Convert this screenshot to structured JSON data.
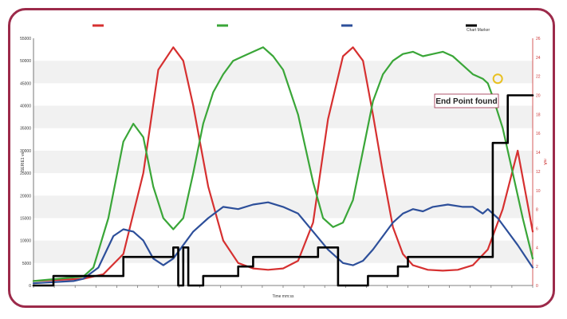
{
  "chart_data": {
    "type": "line",
    "xlabel": "Time mm:ss",
    "ylabel_left": "SERIE1 vs",
    "ylabel_right": "mA",
    "ylim_left": [
      0,
      55000
    ],
    "ylim_right": [
      0,
      26
    ],
    "xlim": [
      0,
      100
    ],
    "yticks_left": [
      0,
      5000,
      10000,
      15000,
      20000,
      25000,
      30000,
      35000,
      40000,
      45000,
      50000,
      55000
    ],
    "yticks_right": [
      0,
      2,
      4,
      6,
      8,
      10,
      12,
      14,
      16,
      18,
      20,
      22,
      24,
      26
    ],
    "grid": "horizontal bands",
    "legend_position": "top",
    "colors": {
      "red": "#d63030",
      "green": "#3aa638",
      "blue": "#2d4f9a",
      "black": "#000000",
      "frame": "#9c2a4a",
      "marker": "#e8c020"
    },
    "series": [
      {
        "name": "",
        "color": "#d63030",
        "axis": "left",
        "x": [
          0,
          10,
          14,
          18,
          22,
          25,
          28,
          30,
          32,
          35,
          38,
          41,
          44,
          47,
          50,
          53,
          56,
          59,
          62,
          64,
          66,
          68,
          70,
          72,
          74,
          76,
          79,
          82,
          85,
          88,
          91,
          94,
          97,
          100
        ],
        "y": [
          1000,
          1500,
          2500,
          7000,
          25000,
          48000,
          53000,
          50000,
          40000,
          22000,
          10000,
          5000,
          3800,
          3500,
          3800,
          5500,
          14000,
          37000,
          51000,
          53000,
          50000,
          38000,
          25000,
          13000,
          7000,
          4500,
          3500,
          3300,
          3500,
          4500,
          8000,
          17000,
          30000,
          12000
        ]
      },
      {
        "name": "",
        "color": "#3aa638",
        "axis": "left",
        "x": [
          0,
          10,
          12,
          15,
          18,
          20,
          22,
          24,
          26,
          28,
          30,
          32,
          34,
          36,
          38,
          40,
          42,
          44,
          46,
          48,
          50,
          53,
          56,
          58,
          60,
          62,
          64,
          66,
          68,
          70,
          72,
          74,
          76,
          78,
          80,
          82,
          84,
          86,
          88,
          90,
          91,
          92,
          94,
          96,
          98,
          100
        ],
        "y": [
          1000,
          2000,
          4000,
          15000,
          32000,
          36000,
          33000,
          22000,
          15000,
          12500,
          15000,
          25000,
          36000,
          43000,
          47000,
          50000,
          51000,
          52000,
          53000,
          51000,
          48000,
          38000,
          23000,
          15000,
          13000,
          14000,
          19000,
          30000,
          41000,
          47000,
          50000,
          51500,
          52000,
          51000,
          51500,
          52000,
          51000,
          49000,
          47000,
          46000,
          45000,
          42000,
          35000,
          25000,
          15000,
          6000
        ]
      },
      {
        "name": "",
        "color": "#2d4f9a",
        "axis": "left",
        "x": [
          0,
          8,
          10,
          13,
          16,
          18,
          20,
          22,
          24,
          26,
          28,
          30,
          32,
          35,
          38,
          41,
          44,
          47,
          50,
          53,
          56,
          59,
          62,
          64,
          66,
          68,
          70,
          72,
          74,
          76,
          78,
          80,
          83,
          86,
          88,
          90,
          91,
          93,
          95,
          97,
          100
        ],
        "y": [
          500,
          1000,
          1500,
          4000,
          11000,
          12500,
          12000,
          10000,
          6000,
          4500,
          6000,
          9000,
          12000,
          15000,
          17500,
          17000,
          18000,
          18500,
          17500,
          16000,
          12000,
          8000,
          5000,
          4500,
          5500,
          8000,
          11000,
          14000,
          16000,
          17000,
          16500,
          17500,
          18000,
          17500,
          17500,
          16000,
          17000,
          15000,
          12000,
          9000,
          4000
        ]
      },
      {
        "name": "Chart Marker",
        "color": "#000000",
        "axis": "right",
        "x": [
          0,
          4,
          4,
          18,
          18,
          28,
          28,
          29,
          29,
          30,
          30,
          31,
          31,
          34,
          34,
          41,
          41,
          44,
          44,
          48,
          48,
          57,
          57,
          60,
          60,
          61,
          61,
          67,
          67,
          73,
          73,
          75,
          75,
          80,
          80,
          92,
          92,
          95,
          95,
          98,
          98,
          100
        ],
        "y": [
          0,
          0,
          1,
          1,
          3,
          3,
          4,
          4,
          0,
          0,
          4,
          4,
          0,
          0,
          1,
          1,
          2,
          2,
          3,
          3,
          3,
          3,
          4,
          4,
          4,
          4,
          0,
          0,
          1,
          1,
          2,
          2,
          3,
          3,
          3,
          3,
          15,
          15,
          20,
          20,
          20,
          20
        ]
      }
    ],
    "annotation": {
      "text": "End Point found",
      "x": 93,
      "y": 46000
    }
  }
}
